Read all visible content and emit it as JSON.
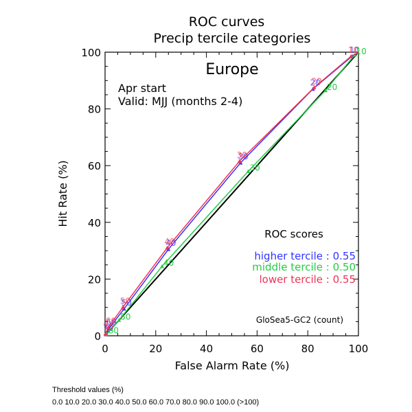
{
  "chart_data": {
    "type": "line",
    "title": "ROC curves",
    "subtitle": "Precip tercile categories",
    "region": "Europe",
    "start_label": "Apr start",
    "valid_label": "Valid: MJJ (months 2-4)",
    "xlabel": "False Alarm Rate (%)",
    "ylabel": "Hit Rate (%)",
    "xlim": [
      0,
      100
    ],
    "ylim": [
      0,
      100
    ],
    "x_ticks": [
      "0",
      "20",
      "40",
      "60",
      "80",
      "100"
    ],
    "y_ticks": [
      "0",
      "20",
      "40",
      "60",
      "80",
      "100"
    ],
    "grid": false,
    "legend_title": "ROC scores",
    "model_label": "GloSea5-GC2 (count)",
    "diagonal_color": "#000000",
    "series": [
      {
        "name": "higher tercile",
        "score_text": "higher tercile : 0.55",
        "color": "#3333ff",
        "points": [
          {
            "x": 97.5,
            "y": 98.6,
            "label": "10"
          },
          {
            "x": 82.0,
            "y": 87.0,
            "label": "20"
          },
          {
            "x": 53.5,
            "y": 61.0,
            "label": "30"
          },
          {
            "x": 25.0,
            "y": 30.5,
            "label": "40"
          },
          {
            "x": 7.5,
            "y": 9.5,
            "label": "50"
          },
          {
            "x": 1.5,
            "y": 2.5,
            "label": "60"
          },
          {
            "x": 0.3,
            "y": 0.5,
            "label": "70"
          }
        ]
      },
      {
        "name": "middle tercile",
        "score_text": "middle tercile : 0.50",
        "color": "#22cc44",
        "points": [
          {
            "x": 98.5,
            "y": 99.0,
            "label": "10"
          },
          {
            "x": 87.0,
            "y": 86.5,
            "label": "20"
          },
          {
            "x": 56.5,
            "y": 58.0,
            "label": "30"
          },
          {
            "x": 22.5,
            "y": 24.5,
            "label": "40"
          },
          {
            "x": 5.5,
            "y": 5.5,
            "label": "50"
          },
          {
            "x": 0.7,
            "y": 0.6,
            "label": "60"
          }
        ]
      },
      {
        "name": "lower tercile",
        "score_text": "lower tercile : 0.55",
        "color": "#ee3355",
        "points": [
          {
            "x": 97.0,
            "y": 98.5,
            "label": "10"
          },
          {
            "x": 82.5,
            "y": 87.5,
            "label": "20"
          },
          {
            "x": 53.0,
            "y": 61.5,
            "label": "30"
          },
          {
            "x": 24.5,
            "y": 31.0,
            "label": "40"
          },
          {
            "x": 7.0,
            "y": 10.0,
            "label": "50"
          },
          {
            "x": 1.3,
            "y": 3.0,
            "label": "60"
          },
          {
            "x": 0.2,
            "y": 0.8,
            "label": "70"
          }
        ]
      }
    ]
  },
  "footer": {
    "threshold_title": "Threshold values (%)",
    "threshold_values": "0.0 10.0 20.0 30.0 40.0 50.0 60.0 70.0 80.0 90.0 100.0 (>100)"
  }
}
